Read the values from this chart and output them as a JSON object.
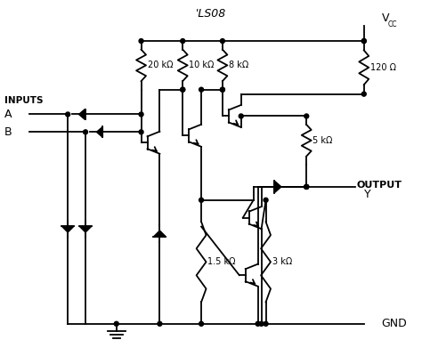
{
  "title": "'LS08",
  "bg_color": "#ffffff",
  "fg_color": "#000000",
  "fig_width": 4.74,
  "fig_height": 3.91,
  "dpi": 100,
  "labels": {
    "title": "'LS08",
    "vcc": "V",
    "vcc_sub": "CC",
    "gnd": "GND",
    "inputs": "INPUTS",
    "A": "A",
    "B": "B",
    "output": "OUTPUT",
    "output_y": "Y",
    "r1": "20 kΩ",
    "r2": "10 kΩ",
    "r3": "8 kΩ",
    "r4": "120 Ω",
    "r5": "5 kΩ",
    "r6": "1.5 kΩ",
    "r7": "3 kΩ"
  }
}
